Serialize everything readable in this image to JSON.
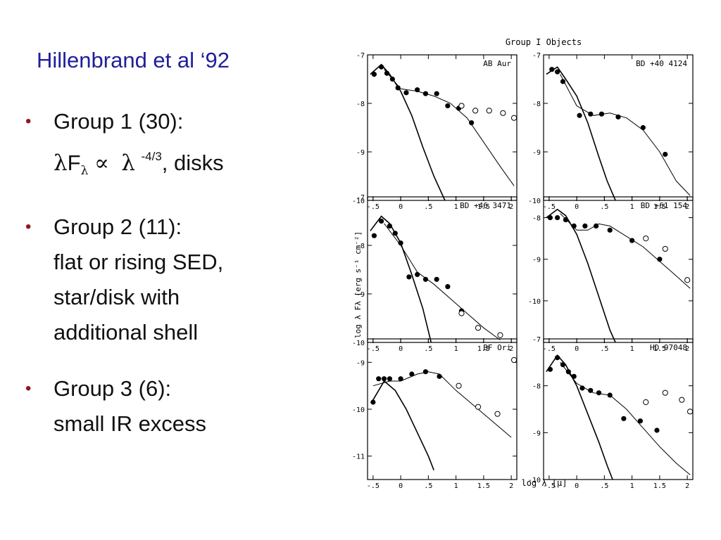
{
  "slide": {
    "title": "Hillenbrand et al ‘92",
    "groups": [
      {
        "heading": "Group 1 (30):",
        "lambda": "λ",
        "F": "F",
        "sub_lambda": "λ",
        "propto": "∝",
        "lambda2": "λ",
        "exponent": "-4/3",
        "suffix": ", disks"
      },
      {
        "heading": "Group 2 (11):",
        "lines": [
          "flat or rising SED,",
          "star/disk with",
          "additional shell"
        ]
      },
      {
        "heading": "Group 3 (6):",
        "lines": [
          "small IR excess"
        ]
      }
    ],
    "bullet_glyph": "•"
  },
  "figure": {
    "title": "Group I Objects",
    "xlabel": "log λ [μ]",
    "ylabel": "log λ Fλ [erg s⁻¹ cm⁻²]"
  },
  "chart_data": [
    {
      "type": "scatter",
      "title": "AB Aur",
      "xlim": [
        -0.6,
        2.1
      ],
      "ylim": [
        -10,
        -7
      ],
      "xticks": [
        "-.5",
        "0",
        ".5",
        "1",
        "1.5",
        "2"
      ],
      "yticks": [
        "-7",
        "-8",
        "-9",
        "-10"
      ],
      "ytick_values": [
        -7,
        -8,
        -9,
        -10
      ],
      "filled": [
        [
          -0.48,
          -7.4
        ],
        [
          -0.35,
          -7.25
        ],
        [
          -0.25,
          -7.38
        ],
        [
          -0.15,
          -7.5
        ],
        [
          -0.05,
          -7.68
        ],
        [
          0.1,
          -7.78
        ],
        [
          0.3,
          -7.72
        ],
        [
          0.45,
          -7.8
        ],
        [
          0.65,
          -7.8
        ],
        [
          0.85,
          -8.05
        ],
        [
          1.05,
          -8.1
        ],
        [
          1.28,
          -8.4
        ]
      ],
      "open": [
        [
          1.1,
          -8.05
        ],
        [
          1.35,
          -8.15
        ],
        [
          1.6,
          -8.15
        ],
        [
          1.85,
          -8.2
        ],
        [
          2.05,
          -8.3
        ]
      ],
      "curves": [
        [
          [
            -0.55,
            -7.4
          ],
          [
            -0.35,
            -7.2
          ],
          [
            -0.2,
            -7.4
          ],
          [
            0,
            -7.75
          ],
          [
            0.2,
            -8.25
          ],
          [
            0.4,
            -8.9
          ],
          [
            0.6,
            -9.5
          ],
          [
            0.8,
            -10
          ]
        ],
        [
          [
            -0.3,
            -7.3
          ],
          [
            0,
            -7.7
          ],
          [
            0.3,
            -7.75
          ],
          [
            0.6,
            -7.85
          ],
          [
            0.9,
            -8
          ],
          [
            1.2,
            -8.3
          ],
          [
            1.5,
            -8.8
          ],
          [
            1.8,
            -9.3
          ],
          [
            2.05,
            -9.7
          ]
        ]
      ]
    },
    {
      "type": "scatter",
      "title": "BD +40 4124",
      "xlim": [
        -0.6,
        2.1
      ],
      "ylim": [
        -10,
        -7
      ],
      "xticks": [
        "-.5",
        "0",
        ".5",
        "1",
        "1.5",
        "2"
      ],
      "yticks": [
        "-7",
        "-8",
        "-9",
        "-10"
      ],
      "ytick_values": [
        -7,
        -8,
        -9,
        -10
      ],
      "filled": [
        [
          -0.45,
          -7.3
        ],
        [
          -0.35,
          -7.35
        ],
        [
          -0.25,
          -7.55
        ],
        [
          0.05,
          -8.25
        ],
        [
          0.25,
          -8.22
        ],
        [
          0.45,
          -8.22
        ],
        [
          0.75,
          -8.28
        ],
        [
          1.2,
          -8.5
        ],
        [
          1.6,
          -9.05
        ]
      ],
      "open": [],
      "curves": [
        [
          [
            -0.55,
            -7.4
          ],
          [
            -0.35,
            -7.25
          ],
          [
            -0.2,
            -7.5
          ],
          [
            0,
            -7.85
          ],
          [
            0.2,
            -8.4
          ],
          [
            0.4,
            -9.1
          ],
          [
            0.55,
            -9.6
          ],
          [
            0.7,
            -10
          ]
        ],
        [
          [
            -0.3,
            -7.4
          ],
          [
            0,
            -8.05
          ],
          [
            0.3,
            -8.25
          ],
          [
            0.6,
            -8.2
          ],
          [
            0.9,
            -8.3
          ],
          [
            1.2,
            -8.55
          ],
          [
            1.5,
            -9
          ],
          [
            1.8,
            -9.6
          ],
          [
            2.05,
            -9.9
          ]
        ]
      ]
    },
    {
      "type": "scatter",
      "title": "BD +46 3471",
      "xlim": [
        -0.6,
        2.1
      ],
      "ylim": [
        -10,
        -7
      ],
      "xticks": [
        "-.5",
        "0",
        ".5",
        "1",
        "1.5",
        "2"
      ],
      "yticks": [
        "-7",
        "-8",
        "-9",
        "-10"
      ],
      "ytick_values": [
        -7,
        -8,
        -9,
        -10
      ],
      "filled": [
        [
          -0.48,
          -7.8
        ],
        [
          -0.35,
          -7.5
        ],
        [
          -0.2,
          -7.6
        ],
        [
          -0.1,
          -7.75
        ],
        [
          0,
          -7.95
        ],
        [
          0.15,
          -8.65
        ],
        [
          0.3,
          -8.6
        ],
        [
          0.45,
          -8.7
        ],
        [
          0.65,
          -8.7
        ],
        [
          0.85,
          -8.85
        ],
        [
          1.1,
          -9.35
        ]
      ],
      "open": [
        [
          1.1,
          -9.4
        ],
        [
          1.4,
          -9.7
        ],
        [
          1.8,
          -9.85
        ]
      ],
      "curves": [
        [
          [
            -0.55,
            -7.7
          ],
          [
            -0.35,
            -7.4
          ],
          [
            -0.2,
            -7.55
          ],
          [
            0,
            -7.95
          ],
          [
            0.2,
            -8.6
          ],
          [
            0.4,
            -9.3
          ],
          [
            0.55,
            -10
          ]
        ],
        [
          [
            -0.3,
            -7.55
          ],
          [
            0,
            -8
          ],
          [
            0.3,
            -8.55
          ],
          [
            0.6,
            -8.8
          ],
          [
            0.9,
            -9.1
          ],
          [
            1.2,
            -9.4
          ],
          [
            1.5,
            -9.7
          ],
          [
            1.8,
            -9.95
          ]
        ]
      ]
    },
    {
      "type": "scatter",
      "title": "BD +61 154",
      "xlim": [
        -0.6,
        2.1
      ],
      "ylim": [
        -11,
        -7.5
      ],
      "xticks": [
        "-.5",
        "0",
        ".5",
        "1",
        "1.5",
        "2"
      ],
      "yticks": [
        "-8",
        "-9",
        "-10"
      ],
      "ytick_values": [
        -8,
        -9,
        -10
      ],
      "filled": [
        [
          -0.48,
          -8
        ],
        [
          -0.35,
          -8
        ],
        [
          -0.2,
          -8.05
        ],
        [
          -0.05,
          -8.2
        ],
        [
          0.15,
          -8.2
        ],
        [
          0.35,
          -8.2
        ],
        [
          0.6,
          -8.3
        ],
        [
          1,
          -8.55
        ],
        [
          1.5,
          -9
        ]
      ],
      "open": [
        [
          1.25,
          -8.5
        ],
        [
          1.6,
          -8.75
        ],
        [
          2,
          -9.5
        ]
      ],
      "curves": [
        [
          [
            -0.55,
            -8
          ],
          [
            -0.35,
            -7.8
          ],
          [
            -0.2,
            -7.95
          ],
          [
            0,
            -8.4
          ],
          [
            0.2,
            -9.1
          ],
          [
            0.4,
            -9.9
          ],
          [
            0.6,
            -10.7
          ],
          [
            0.7,
            -11
          ]
        ],
        [
          [
            -0.3,
            -7.9
          ],
          [
            0,
            -8.3
          ],
          [
            0.2,
            -8.3
          ],
          [
            0.4,
            -8.15
          ],
          [
            0.6,
            -8.2
          ],
          [
            0.9,
            -8.45
          ],
          [
            1.2,
            -8.7
          ],
          [
            1.5,
            -9.05
          ],
          [
            1.8,
            -9.4
          ],
          [
            2.05,
            -9.7
          ]
        ]
      ]
    },
    {
      "type": "scatter",
      "title": "BF Ori",
      "xlim": [
        -0.6,
        2.1
      ],
      "ylim": [
        -11.5,
        -8.5
      ],
      "xticks": [
        "-.5",
        "0",
        ".5",
        "1",
        "1.5",
        "2"
      ],
      "yticks": [
        "-9",
        "-10",
        "-11"
      ],
      "ytick_values": [
        -9,
        -10,
        -11
      ],
      "filled": [
        [
          -0.5,
          -9.85
        ],
        [
          -0.4,
          -9.35
        ],
        [
          -0.3,
          -9.35
        ],
        [
          -0.2,
          -9.35
        ],
        [
          0,
          -9.35
        ],
        [
          0.2,
          -9.25
        ],
        [
          0.45,
          -9.2
        ],
        [
          0.7,
          -9.3
        ]
      ],
      "open": [
        [
          1.05,
          -9.5
        ],
        [
          1.4,
          -9.95
        ],
        [
          1.75,
          -10.1
        ],
        [
          2.05,
          -8.95
        ]
      ],
      "curves": [
        [
          [
            -0.5,
            -9.8
          ],
          [
            -0.3,
            -9.4
          ],
          [
            -0.1,
            -9.6
          ],
          [
            0.1,
            -10
          ],
          [
            0.3,
            -10.5
          ],
          [
            0.5,
            -11
          ],
          [
            0.6,
            -11.3
          ]
        ],
        [
          [
            -0.5,
            -9.5
          ],
          [
            -0.2,
            -9.4
          ],
          [
            0,
            -9.4
          ],
          [
            0.3,
            -9.25
          ],
          [
            0.5,
            -9.2
          ],
          [
            0.7,
            -9.25
          ],
          [
            1,
            -9.6
          ],
          [
            1.3,
            -9.9
          ],
          [
            1.6,
            -10.2
          ],
          [
            2,
            -10.6
          ]
        ]
      ]
    },
    {
      "type": "scatter",
      "title": "HD 97048",
      "xlim": [
        -0.6,
        2.1
      ],
      "ylim": [
        -10,
        -7
      ],
      "xticks": [
        "-.5",
        "0",
        ".5",
        "1",
        "1.5",
        "2"
      ],
      "yticks": [
        "-7",
        "-8",
        "-9",
        "-10"
      ],
      "ytick_values": [
        -7,
        -8,
        -9,
        -10
      ],
      "filled": [
        [
          -0.48,
          -7.65
        ],
        [
          -0.35,
          -7.4
        ],
        [
          -0.25,
          -7.55
        ],
        [
          -0.15,
          -7.7
        ],
        [
          -0.05,
          -7.8
        ],
        [
          0.1,
          -8.05
        ],
        [
          0.25,
          -8.1
        ],
        [
          0.4,
          -8.15
        ],
        [
          0.6,
          -8.2
        ],
        [
          0.85,
          -8.7
        ],
        [
          1.15,
          -8.75
        ],
        [
          1.45,
          -8.95
        ]
      ],
      "open": [
        [
          1.25,
          -8.35
        ],
        [
          1.6,
          -8.15
        ],
        [
          1.9,
          -8.3
        ],
        [
          2.05,
          -8.55
        ]
      ],
      "curves": [
        [
          [
            -0.55,
            -7.7
          ],
          [
            -0.35,
            -7.35
          ],
          [
            -0.2,
            -7.55
          ],
          [
            0,
            -8
          ],
          [
            0.2,
            -8.6
          ],
          [
            0.4,
            -9.2
          ],
          [
            0.55,
            -9.7
          ],
          [
            0.65,
            -10
          ]
        ],
        [
          [
            -0.3,
            -7.5
          ],
          [
            0,
            -7.95
          ],
          [
            0.3,
            -8.15
          ],
          [
            0.6,
            -8.2
          ],
          [
            0.9,
            -8.5
          ],
          [
            1.2,
            -8.9
          ],
          [
            1.5,
            -9.3
          ],
          [
            1.8,
            -9.65
          ],
          [
            2.05,
            -9.9
          ]
        ]
      ]
    }
  ]
}
